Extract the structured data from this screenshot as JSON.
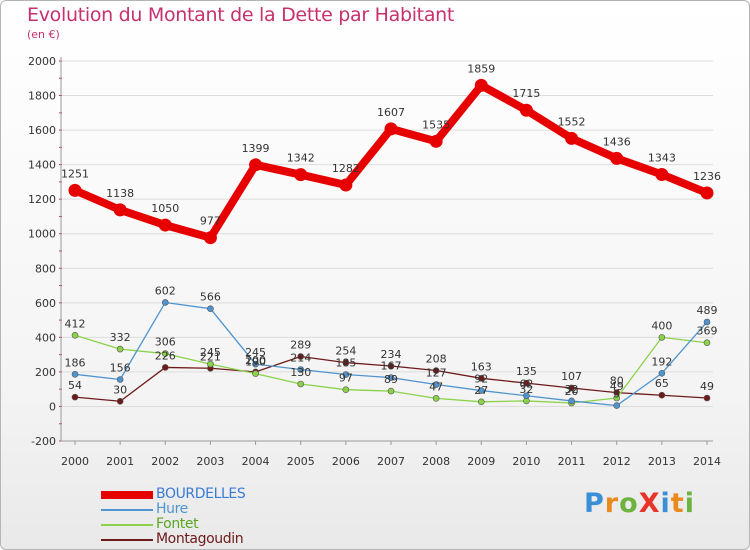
{
  "header": {
    "title": "Evolution du Montant de la Dette par Habitant",
    "subtitle": "(en €)"
  },
  "logo": {
    "text": "ProXiti",
    "colors": [
      "#3a8fd6",
      "#e98a1e",
      "#6cb33f",
      "#e7342a",
      "#3a8fd6",
      "#e98a1e",
      "#6cb33f"
    ]
  },
  "chart_data": {
    "type": "line",
    "x": [
      "2000",
      "2001",
      "2002",
      "2003",
      "2004",
      "2005",
      "2006",
      "2007",
      "2008",
      "2009",
      "2010",
      "2011",
      "2012",
      "2013",
      "2014"
    ],
    "yticks": [
      "-200",
      "0",
      "200",
      "400",
      "600",
      "800",
      "1000",
      "1200",
      "1400",
      "1600",
      "1800",
      "2000"
    ],
    "ylim": [
      -200,
      2000
    ],
    "grid": "horizontal",
    "legend_position": "bottom-left",
    "series": [
      {
        "name": "BOURDELLES",
        "color": "#e60000",
        "values": [
          1251,
          1138,
          1050,
          977,
          1399,
          1342,
          1282,
          1607,
          1535,
          1859,
          1715,
          1552,
          1436,
          1343,
          1236
        ],
        "labels": [
          "1251",
          "1138",
          "1050",
          "977",
          "1399",
          "1342",
          "1282",
          "1607",
          "1535",
          "1859",
          "1715",
          "1552",
          "1436",
          "1343",
          "1236"
        ]
      },
      {
        "name": "Hure",
        "color": "#4f94cf",
        "values": [
          186,
          156,
          602,
          566,
          245,
          214,
          185,
          167,
          127,
          92,
          62,
          32,
          5,
          192,
          489
        ],
        "labels": [
          "186",
          "156",
          "602",
          "566",
          "245",
          "214",
          "185",
          "167",
          "127",
          "92",
          "62",
          "32",
          "5",
          "192",
          "489"
        ]
      },
      {
        "name": "Fontet",
        "color": "#8bd24a",
        "values": [
          412,
          332,
          306,
          245,
          190,
          130,
          97,
          89,
          47,
          27,
          32,
          20,
          49,
          400,
          369
        ],
        "labels": [
          "412",
          "332",
          "306",
          "245",
          "190",
          "130",
          "97",
          "89",
          "47",
          "27",
          "32",
          "20",
          "49",
          "400",
          "369"
        ]
      },
      {
        "name": "Montagoudin",
        "color": "#6e1a1a",
        "values": [
          54,
          30,
          226,
          221,
          200,
          289,
          254,
          234,
          208,
          163,
          135,
          107,
          80,
          65,
          49
        ],
        "labels": [
          "54",
          "30",
          "226",
          "221",
          "200",
          "289",
          "254",
          "234",
          "208",
          "163",
          "135",
          "107",
          "80",
          "65",
          "49"
        ]
      }
    ]
  }
}
